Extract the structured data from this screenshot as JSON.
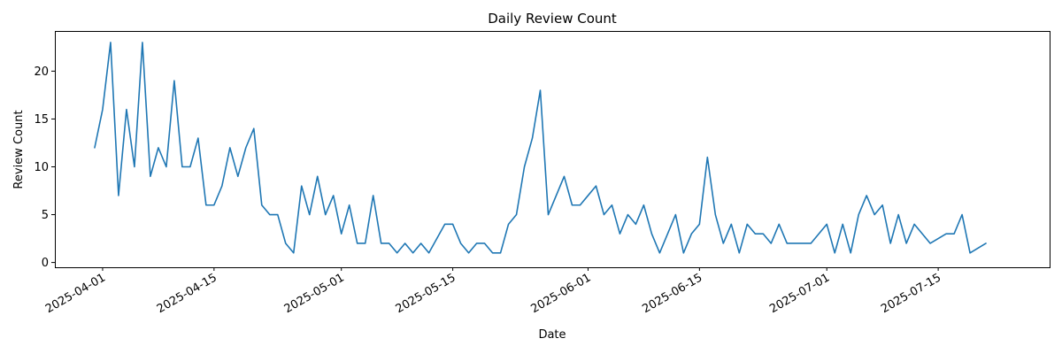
{
  "chart_data": {
    "type": "line",
    "title": "Daily Review Count",
    "xlabel": "Date",
    "ylabel": "Review Count",
    "x_type": "date",
    "xlim": [
      "2025-03-26",
      "2025-07-29"
    ],
    "ylim": [
      -0.5,
      24.2
    ],
    "grid": false,
    "legend": "none",
    "x_ticks": [
      "2025-04-01",
      "2025-04-15",
      "2025-05-01",
      "2025-05-15",
      "2025-06-01",
      "2025-06-15",
      "2025-07-01",
      "2025-07-15"
    ],
    "y_ticks": [
      0,
      5,
      10,
      15,
      20
    ],
    "series_color": "#1f77b4",
    "series": [
      {
        "x": [
          "2025-03-31",
          "2025-04-01",
          "2025-04-02",
          "2025-04-03",
          "2025-04-04",
          "2025-04-05",
          "2025-04-06",
          "2025-04-07",
          "2025-04-08",
          "2025-04-09",
          "2025-04-10",
          "2025-04-11",
          "2025-04-12",
          "2025-04-13",
          "2025-04-14",
          "2025-04-15",
          "2025-04-16",
          "2025-04-17",
          "2025-04-18",
          "2025-04-19",
          "2025-04-20",
          "2025-04-21",
          "2025-04-22",
          "2025-04-23",
          "2025-04-24",
          "2025-04-25",
          "2025-04-26",
          "2025-04-27",
          "2025-04-28",
          "2025-04-29",
          "2025-04-30",
          "2025-05-01",
          "2025-05-02",
          "2025-05-03",
          "2025-05-04",
          "2025-05-05",
          "2025-05-06",
          "2025-05-07",
          "2025-05-08",
          "2025-05-09",
          "2025-05-10",
          "2025-05-11",
          "2025-05-12",
          "2025-05-14",
          "2025-05-15",
          "2025-05-16",
          "2025-05-17",
          "2025-05-18",
          "2025-05-19",
          "2025-05-20",
          "2025-05-21",
          "2025-05-22",
          "2025-05-23",
          "2025-05-24",
          "2025-05-25",
          "2025-05-26",
          "2025-05-27",
          "2025-05-29",
          "2025-05-30",
          "2025-05-31",
          "2025-06-01",
          "2025-06-02",
          "2025-06-03",
          "2025-06-04",
          "2025-06-05",
          "2025-06-06",
          "2025-06-07",
          "2025-06-08",
          "2025-06-09",
          "2025-06-10",
          "2025-06-12",
          "2025-06-13",
          "2025-06-14",
          "2025-06-15",
          "2025-06-16",
          "2025-06-17",
          "2025-06-18",
          "2025-06-19",
          "2025-06-20",
          "2025-06-21",
          "2025-06-22",
          "2025-06-23",
          "2025-06-24",
          "2025-06-25",
          "2025-06-26",
          "2025-06-27",
          "2025-06-29",
          "2025-07-01",
          "2025-07-02",
          "2025-07-03",
          "2025-07-04",
          "2025-07-05",
          "2025-07-06",
          "2025-07-07",
          "2025-07-08",
          "2025-07-09",
          "2025-07-10",
          "2025-07-11",
          "2025-07-12",
          "2025-07-14",
          "2025-07-16",
          "2025-07-17",
          "2025-07-18",
          "2025-07-19",
          "2025-07-21"
        ],
        "y": [
          12,
          16,
          23,
          7,
          16,
          10,
          23,
          9,
          12,
          10,
          19,
          10,
          10,
          13,
          6,
          6,
          8,
          12,
          9,
          12,
          14,
          6,
          5,
          5,
          2,
          1,
          8,
          5,
          9,
          5,
          7,
          3,
          6,
          2,
          2,
          7,
          2,
          2,
          1,
          2,
          1,
          2,
          1,
          4,
          4,
          2,
          1,
          2,
          2,
          1,
          1,
          4,
          5,
          10,
          13,
          18,
          5,
          9,
          6,
          6,
          7,
          8,
          5,
          6,
          3,
          5,
          4,
          6,
          3,
          1,
          5,
          1,
          3,
          4,
          11,
          5,
          2,
          4,
          1,
          4,
          3,
          3,
          2,
          4,
          2,
          2,
          2,
          4,
          1,
          4,
          1,
          5,
          7,
          5,
          6,
          2,
          5,
          2,
          4,
          2,
          3,
          3,
          5,
          1,
          2
        ]
      }
    ]
  }
}
